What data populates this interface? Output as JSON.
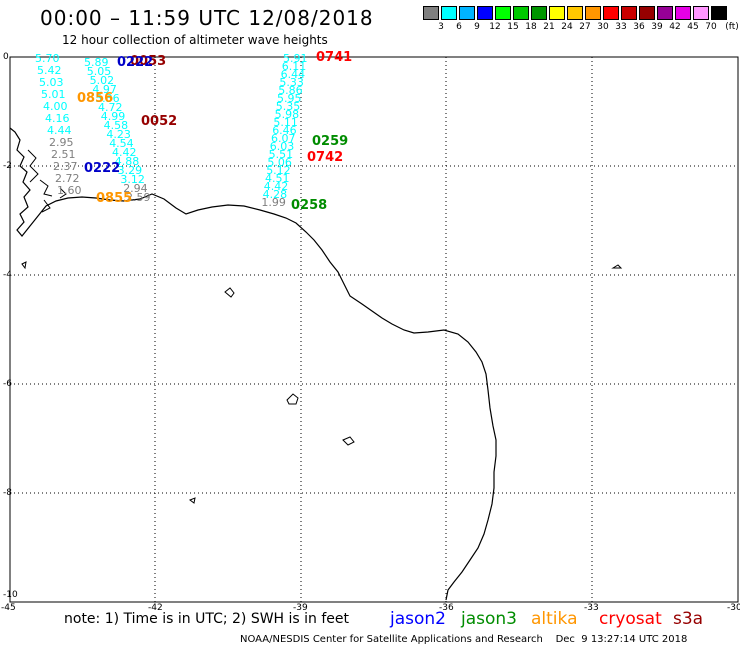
{
  "header": {
    "title": "00:00 – 11:59 UTC 12/08/2018",
    "subtitle": "12 hour collection of altimeter wave heights"
  },
  "legend": {
    "unit": "(ft)",
    "levels": [
      "3",
      "6",
      "9",
      "12",
      "15",
      "18",
      "21",
      "24",
      "27",
      "30",
      "33",
      "36",
      "39",
      "42",
      "45",
      "70"
    ],
    "colors": [
      "#7f7f7f",
      "#00ffff",
      "#00b4ff",
      "#0000ff",
      "#00ff00",
      "#00c800",
      "#009600",
      "#ffff00",
      "#ffc800",
      "#ff9600",
      "#ff0000",
      "#c80000",
      "#960000",
      "#960096",
      "#e600e6",
      "#ff96ff",
      "#000000"
    ]
  },
  "map": {
    "lat_labels": [
      "0",
      "-2",
      "-4",
      "-6",
      "-8",
      "-10"
    ],
    "lon_labels": [
      "-45",
      "-42",
      "-39",
      "-36",
      "-33",
      "-30"
    ],
    "track_west_values": [
      {
        "v": "5.70",
        "c": "#00ffff"
      },
      {
        "v": "5.42",
        "c": "#00ffff"
      },
      {
        "v": "5.03",
        "c": "#00ffff"
      },
      {
        "v": "5.01",
        "c": "#00ffff"
      },
      {
        "v": "4.00",
        "c": "#00ffff"
      },
      {
        "v": "4.16",
        "c": "#00ffff"
      },
      {
        "v": "4.44",
        "c": "#00ffff"
      },
      {
        "v": "2.95",
        "c": "#7f7f7f"
      },
      {
        "v": "2.51",
        "c": "#7f7f7f"
      },
      {
        "v": "2.37",
        "c": "#7f7f7f"
      },
      {
        "v": "2.72",
        "c": "#7f7f7f"
      },
      {
        "v": "1.60",
        "c": "#7f7f7f"
      }
    ],
    "track_mid_values": [
      {
        "v": "5.89",
        "c": "#00ffff"
      },
      {
        "v": "5.05",
        "c": "#00ffff"
      },
      {
        "v": "5.02",
        "c": "#00ffff"
      },
      {
        "v": "4.97",
        "c": "#00ffff"
      },
      {
        "v": "5.36",
        "c": "#00ffff"
      },
      {
        "v": "4.72",
        "c": "#00ffff"
      },
      {
        "v": "4.99",
        "c": "#00ffff"
      },
      {
        "v": "4.58",
        "c": "#00ffff"
      },
      {
        "v": "4.23",
        "c": "#00ffff"
      },
      {
        "v": "4.54",
        "c": "#00ffff"
      },
      {
        "v": "4.42",
        "c": "#00ffff"
      },
      {
        "v": "4.88",
        "c": "#00ffff"
      },
      {
        "v": "3.29",
        "c": "#00ffff"
      },
      {
        "v": "3.12",
        "c": "#00ffff"
      },
      {
        "v": "2.94",
        "c": "#7f7f7f"
      },
      {
        "v": "2.59",
        "c": "#7f7f7f"
      }
    ],
    "track_east_values": [
      {
        "v": "5.91",
        "c": "#00ffff"
      },
      {
        "v": "6.11",
        "c": "#00ffff"
      },
      {
        "v": "6.44",
        "c": "#00ffff"
      },
      {
        "v": "5.33",
        "c": "#00ffff"
      },
      {
        "v": "5.86",
        "c": "#00ffff"
      },
      {
        "v": "5.95",
        "c": "#00ffff"
      },
      {
        "v": "5.35",
        "c": "#00ffff"
      },
      {
        "v": "5.98",
        "c": "#00ffff"
      },
      {
        "v": "5.11",
        "c": "#00ffff"
      },
      {
        "v": "6.46",
        "c": "#00ffff"
      },
      {
        "v": "6.07",
        "c": "#00ffff"
      },
      {
        "v": "6.03",
        "c": "#00ffff"
      },
      {
        "v": "5.51",
        "c": "#00ffff"
      },
      {
        "v": "5.06",
        "c": "#00ffff"
      },
      {
        "v": "5.12",
        "c": "#00ffff"
      },
      {
        "v": "4.51",
        "c": "#00ffff"
      },
      {
        "v": "4.42",
        "c": "#00ffff"
      },
      {
        "v": "4.28",
        "c": "#00ffff"
      },
      {
        "v": "1.99",
        "c": "#7f7f7f"
      }
    ],
    "pass_times": [
      {
        "t": "0053",
        "c": "#960000"
      },
      {
        "t": "0222",
        "c": "#0000c8"
      },
      {
        "t": "0856",
        "c": "#ff9600"
      },
      {
        "t": "0052",
        "c": "#960000"
      },
      {
        "t": "0222",
        "c": "#0000c8"
      },
      {
        "t": "0855",
        "c": "#ff9600"
      },
      {
        "t": "0741",
        "c": "#ff0000"
      },
      {
        "t": "0259",
        "c": "#008c00"
      },
      {
        "t": "0742",
        "c": "#ff0000"
      },
      {
        "t": "0258",
        "c": "#008c00"
      }
    ]
  },
  "footer": {
    "note": "note: 1) Time is in UTC; 2) SWH is in feet",
    "satellites": [
      {
        "name": "jason2",
        "color": "#0000ff"
      },
      {
        "name": "jason3",
        "color": "#008c00"
      },
      {
        "name": "altika",
        "color": "#ff9600"
      },
      {
        "name": "cryosat",
        "color": "#ff0000"
      },
      {
        "name": "s3a",
        "color": "#960000"
      }
    ],
    "credit": "NOAA/NESDIS Center for Satellite Applications and Research    Dec  9 13:27:14 UTC 2018"
  }
}
